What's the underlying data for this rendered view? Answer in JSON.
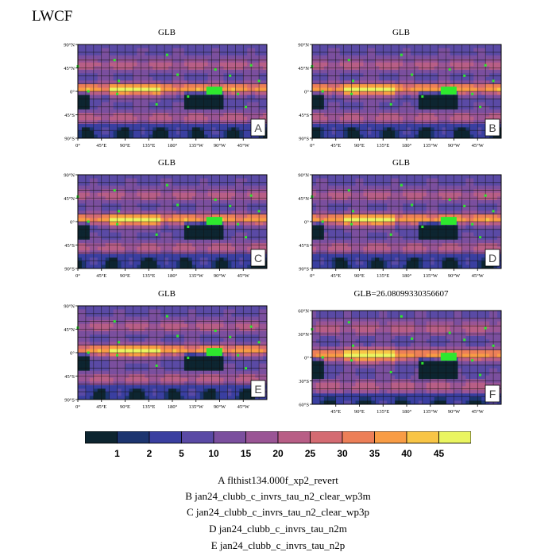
{
  "page": {
    "title": "LWCF"
  },
  "chart_data": [
    {
      "type": "heatmap",
      "panel_label": "A",
      "title": "GLB",
      "ylabels": [
        "90°N",
        "45°N",
        "0°",
        "45°S",
        "90°S"
      ],
      "xlabels": [
        "0°",
        "45°E",
        "90°E",
        "135°E",
        "180°",
        "135°W",
        "90°W",
        "45°W"
      ]
    },
    {
      "type": "heatmap",
      "panel_label": "B",
      "title": "GLB",
      "ylabels": [
        "90°N",
        "45°N",
        "0°",
        "45°S",
        "90°S"
      ],
      "xlabels": [
        "0°",
        "45°E",
        "90°E",
        "135°E",
        "180°",
        "135°W",
        "90°W",
        "45°W"
      ]
    },
    {
      "type": "heatmap",
      "panel_label": "C",
      "title": "GLB",
      "ylabels": [
        "90°N",
        "45°N",
        "0°",
        "45°S",
        "90°S"
      ],
      "xlabels": [
        "0°",
        "45°E",
        "90°E",
        "135°E",
        "180°",
        "135°W",
        "90°W",
        "45°W"
      ]
    },
    {
      "type": "heatmap",
      "panel_label": "D",
      "title": "GLB",
      "ylabels": [
        "90°N",
        "45°N",
        "0°",
        "45°S",
        "90°S"
      ],
      "xlabels": [
        "0°",
        "45°E",
        "90°E",
        "135°E",
        "180°",
        "135°W",
        "90°W",
        "45°W"
      ]
    },
    {
      "type": "heatmap",
      "panel_label": "E",
      "title": "GLB",
      "ylabels": [
        "90°N",
        "45°N",
        "0°",
        "45°S",
        "90°S"
      ],
      "xlabels": [
        "0°",
        "45°E",
        "90°E",
        "135°E",
        "180°",
        "135°W",
        "90°W",
        "45°W"
      ]
    },
    {
      "type": "heatmap",
      "panel_label": "F",
      "title": "GLB=26.08099330356607",
      "ylabels": [
        "60°N",
        "30°N",
        "0°",
        "30°S",
        "60°S"
      ],
      "xlabels": [
        "45°E",
        "90°E",
        "135°E",
        "180°",
        "135°W",
        "90°W",
        "45°W"
      ]
    }
  ],
  "colorbar": {
    "levels": [
      "1",
      "2",
      "5",
      "10",
      "15",
      "20",
      "25",
      "30",
      "35",
      "40",
      "45"
    ],
    "colors": [
      "#0d2530",
      "#1c3570",
      "#3a3fa0",
      "#5a4aa5",
      "#7b4f9e",
      "#9a5595",
      "#b85e86",
      "#d46b72",
      "#ec7f58",
      "#f89c45",
      "#f8c546",
      "#eaf560"
    ]
  },
  "legend": [
    "A  flthist134.000f_xp2_revert",
    "B  jan24_clubb_c_invrs_tau_n2_clear_wp3m",
    "C  jan24_clubb_c_invrs_tau_n2_clear_wp3p",
    "D  jan24_clubb_c_invrs_tau_n2m",
    "E  jan24_clubb_c_invrs_tau_n2p"
  ]
}
